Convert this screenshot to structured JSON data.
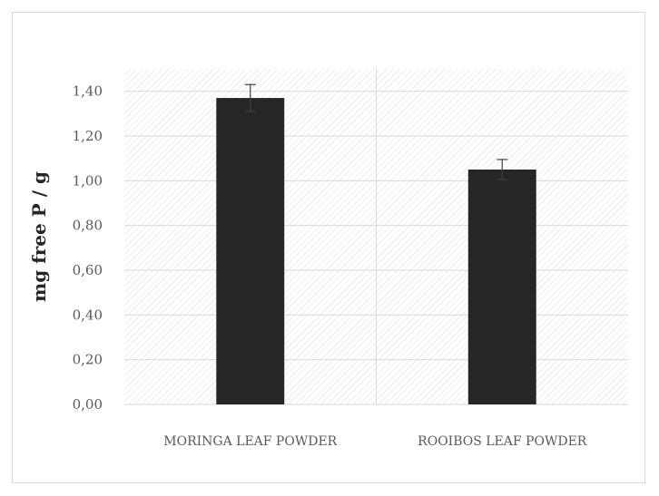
{
  "chart_data": {
    "type": "bar",
    "title": "",
    "xlabel": "",
    "ylabel": "mg free P / g",
    "categories": [
      "MORINGA LEAF POWDER",
      "ROOIBOS LEAF POWDER"
    ],
    "values": [
      1.37,
      1.05
    ],
    "error": [
      0.06,
      0.045
    ],
    "ylim": [
      0,
      1.5
    ],
    "yticks": [
      0,
      0.2,
      0.4,
      0.6,
      0.8,
      1.0,
      1.2,
      1.4
    ],
    "ytick_labels": [
      "0,00",
      "0,20",
      "0,40",
      "0,60",
      "0,80",
      "1,00",
      "1,20",
      "1,40"
    ],
    "grid": true,
    "legend": "none",
    "colors": {
      "bar": "#262626",
      "gridline": "#d9d9d9",
      "hatch": "#d9d9d9",
      "error_bar": "#404040"
    }
  }
}
